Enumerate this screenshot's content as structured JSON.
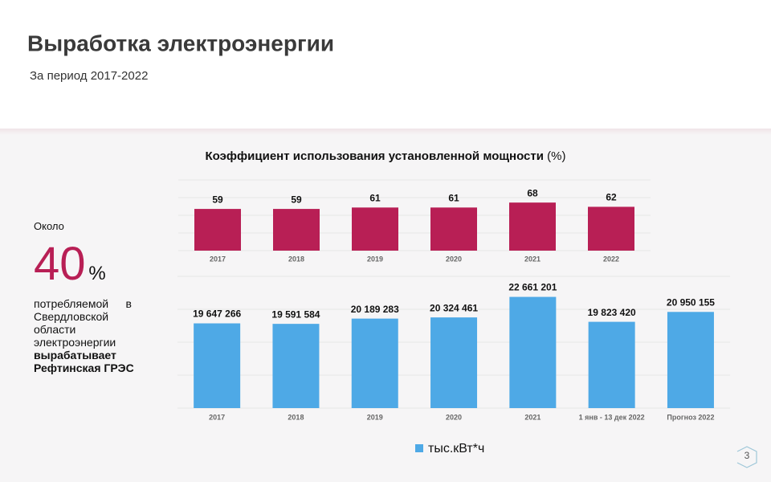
{
  "header": {
    "title": "Выработка электроэнергии",
    "subtitle": "За период 2017-2022"
  },
  "side": {
    "prefix": "Около",
    "number": 40,
    "unit": "%",
    "text": "потребляемой в Свердловской области электроэнергии",
    "bold": "вырабатывает Рефтинская ГРЭС"
  },
  "page_number": 3,
  "chart_data": [
    {
      "type": "bar",
      "title": "Коэффициент использования установленной мощности",
      "unit": "(%)",
      "categories": [
        "2017",
        "2018",
        "2019",
        "2020",
        "2021",
        "2022"
      ],
      "values": [
        59,
        59,
        61,
        61,
        68,
        62
      ],
      "color": "#b81f55",
      "ylim": [
        0,
        100
      ],
      "yticks": [
        0,
        25,
        50,
        75,
        100
      ],
      "grid": true
    },
    {
      "type": "bar",
      "categories": [
        "2017",
        "2018",
        "2019",
        "2020",
        "2021",
        "1 янв - 13 дек 2022",
        "Прогноз 2022"
      ],
      "series": [
        {
          "name": "тыс.кВт*ч",
          "color": "#4ea9e6",
          "values": [
            19647266,
            19591584,
            20189283,
            20324461,
            22661201,
            19823420,
            20950155
          ],
          "value_labels": [
            "19 647 266",
            "19 591 584",
            "20 189 283",
            "20 324 461",
            "22 661 201",
            "19 823 420",
            "20 950 155"
          ]
        }
      ],
      "ylim": [
        10000000,
        25000000
      ],
      "yticks": [
        10000000,
        13750000,
        17500000,
        21250000,
        25000000
      ],
      "grid": true,
      "legend": "bottom"
    }
  ]
}
